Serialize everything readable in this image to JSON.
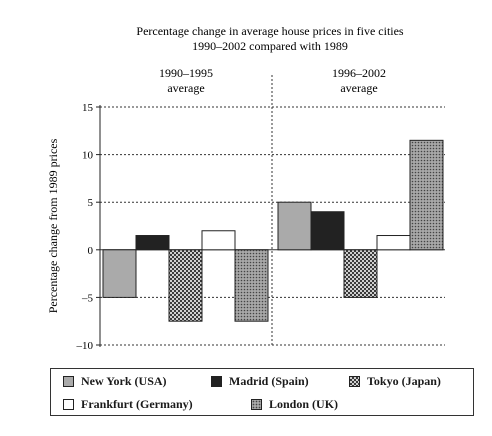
{
  "chart_data": {
    "type": "bar",
    "title": "Percentage change in average house prices in five cities",
    "subtitle": "1990–2002 compared with 1989",
    "ylabel": "Percentage change from 1989 prices",
    "ylim": [
      -10,
      15
    ],
    "yticks": [
      -10,
      -5,
      0,
      5,
      10,
      15
    ],
    "ytick_labels": [
      "–10",
      "–5",
      "0",
      "5",
      "10",
      "15"
    ],
    "categories": [
      "1990–1995 average",
      "1996–2002 average"
    ],
    "category_labels": [
      [
        "1990–1995",
        "average"
      ],
      [
        "1996–2002",
        "average"
      ]
    ],
    "grid": true,
    "legend_position": "bottom",
    "series": [
      {
        "name": "New York (USA)",
        "values": [
          -5,
          5
        ],
        "color": "#aaaaaa",
        "pattern": "solid"
      },
      {
        "name": "Madrid (Spain)",
        "values": [
          1.5,
          4
        ],
        "color": "#222222",
        "pattern": "solid"
      },
      {
        "name": "Tokyo (Japan)",
        "values": [
          -7.5,
          -5
        ],
        "color": "#555555",
        "pattern": "check"
      },
      {
        "name": "Frankfurt (Germany)",
        "values": [
          2,
          1.5
        ],
        "color": "#ffffff",
        "pattern": "solid"
      },
      {
        "name": "London (UK)",
        "values": [
          -7.5,
          11.5
        ],
        "color": "#888888",
        "pattern": "dots"
      }
    ]
  }
}
